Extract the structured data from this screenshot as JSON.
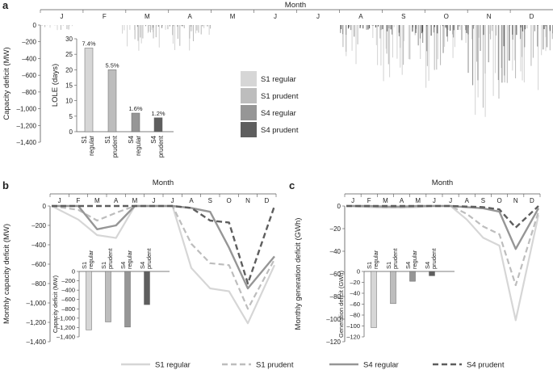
{
  "panels": {
    "a": "a",
    "b": "b",
    "c": "c"
  },
  "months": [
    "J",
    "F",
    "M",
    "A",
    "M",
    "J",
    "J",
    "A",
    "S",
    "O",
    "N",
    "D"
  ],
  "month_axis_label": "Month",
  "colors": {
    "s1_regular": "#d6d6d6",
    "s1_prudent": "#bdbdbd",
    "s4_regular": "#969696",
    "s4_prudent": "#5e5e5e",
    "axis": "#555555"
  },
  "series_names": [
    "S1 regular",
    "S1 prudent",
    "S4 regular",
    "S4 prudent"
  ],
  "chart_data": [
    {
      "id": "a",
      "type": "bar",
      "title": "",
      "xlabel": "Month",
      "ylabel": "Capacity deficit (MW)",
      "ylim": [
        -1400,
        0
      ],
      "yticks": [
        0,
        -200,
        -400,
        -600,
        -800,
        -1000,
        -1200,
        -1400
      ],
      "ytick_labels": [
        "0",
        "–200",
        "–400",
        "–600",
        "–800",
        "–1,000",
        "–1,200",
        "–1,400"
      ],
      "description_series": [
        {
          "name": "S1 regular",
          "monthly_max_deficit_mw": [
            -100,
            -180,
            -320,
            -380,
            0,
            0,
            0,
            -550,
            -700,
            -850,
            -1150,
            -800
          ]
        },
        {
          "name": "S1 prudent",
          "monthly_max_deficit_mw": [
            -60,
            -120,
            -220,
            -260,
            0,
            0,
            0,
            -400,
            -550,
            -700,
            -1050,
            -650
          ]
        },
        {
          "name": "S4 regular",
          "monthly_max_deficit_mw": [
            0,
            0,
            -40,
            -20,
            0,
            0,
            0,
            -150,
            -250,
            -350,
            -850,
            -300
          ]
        },
        {
          "name": "S4 prudent",
          "monthly_max_deficit_mw": [
            0,
            0,
            0,
            0,
            0,
            0,
            0,
            -60,
            -100,
            -150,
            -600,
            -120
          ]
        }
      ],
      "legend": [
        "S1 regular",
        "S1 prudent",
        "S4 regular",
        "S4 prudent"
      ],
      "legend_position": "center-left"
    },
    {
      "id": "a-inset",
      "type": "bar",
      "ylabel": "LOLE (days)",
      "ylim": [
        0,
        30
      ],
      "yticks": [
        0,
        5,
        10,
        15,
        20,
        25,
        30
      ],
      "categories": [
        "S1 regular",
        "S1 prudent",
        "S4 regular",
        "S4 prudent"
      ],
      "category_labels": [
        [
          "S1",
          "regular"
        ],
        [
          "S1",
          "prudent"
        ],
        [
          "S4",
          "regular"
        ],
        [
          "S4",
          "prudent"
        ]
      ],
      "values": [
        27,
        20,
        6,
        4.5
      ],
      "data_labels": [
        "7.4%",
        "5.5%",
        "1.6%",
        "1.2%"
      ]
    },
    {
      "id": "b",
      "type": "line",
      "xlabel": "Month",
      "ylabel": "Monthly capacity deficit (MW)",
      "ylim": [
        -1400,
        0
      ],
      "yticks": [
        0,
        -200,
        -400,
        -600,
        -800,
        -1000,
        -1200,
        -1400
      ],
      "ytick_labels": [
        "0",
        "–200",
        "–400",
        "–600",
        "–800",
        "–1,000",
        "–1,200",
        "–1,400"
      ],
      "x": [
        "J",
        "F",
        "M",
        "A",
        "M",
        "J",
        "J",
        "A",
        "S",
        "O",
        "N",
        "D"
      ],
      "series": [
        {
          "name": "S1 regular",
          "values": [
            0,
            -140,
            -300,
            -330,
            0,
            0,
            0,
            -640,
            -850,
            -880,
            -1210,
            -610
          ]
        },
        {
          "name": "S1 prudent",
          "values": [
            0,
            -40,
            -150,
            -70,
            0,
            0,
            0,
            -390,
            -590,
            -610,
            -1060,
            -550
          ]
        },
        {
          "name": "S4 regular",
          "values": [
            0,
            0,
            -240,
            -200,
            0,
            0,
            0,
            -20,
            -60,
            -430,
            -850,
            -520
          ]
        },
        {
          "name": "S4 prudent",
          "values": [
            0,
            0,
            0,
            0,
            0,
            0,
            0,
            -20,
            -150,
            -170,
            -800,
            0
          ]
        }
      ]
    },
    {
      "id": "b-inset",
      "type": "bar",
      "ylabel": "Capacity deficit (MW)",
      "ylim": [
        -1400,
        0
      ],
      "yticks": [
        0,
        -200,
        -400,
        -600,
        -800,
        -1000,
        -1200,
        -1400
      ],
      "ytick_labels": [
        "0",
        "–200",
        "–400",
        "–600",
        "–800",
        "–1,000",
        "–1,200",
        "–1,400"
      ],
      "categories": [
        "S1 regular",
        "S1 prudent",
        "S4 regular",
        "S4 prudent"
      ],
      "category_labels": [
        [
          "S1",
          "regular"
        ],
        [
          "S1",
          "prudent"
        ],
        [
          "S4",
          "regular"
        ],
        [
          "S4",
          "prudent"
        ]
      ],
      "values": [
        -1250,
        -1080,
        -1190,
        -710
      ]
    },
    {
      "id": "c",
      "type": "line",
      "xlabel": "Month",
      "ylabel": "Monthly generation deficit (GWh)",
      "ylim": [
        -120,
        0
      ],
      "yticks": [
        0,
        -20,
        -40,
        -60,
        -80,
        -100,
        -120
      ],
      "ytick_labels": [
        "0",
        "–20",
        "–40",
        "–60",
        "–80",
        "–100",
        "–120"
      ],
      "x": [
        "J",
        "F",
        "M",
        "A",
        "M",
        "J",
        "J",
        "A",
        "S",
        "O",
        "N",
        "D"
      ],
      "series": [
        {
          "name": "S1 regular",
          "values": [
            0,
            -1,
            -1.5,
            -1.5,
            -1,
            0,
            0,
            -12,
            -28,
            -35,
            -101,
            -8
          ]
        },
        {
          "name": "S1 prudent",
          "values": [
            0,
            -0.5,
            -1,
            -1,
            -0.5,
            0,
            0,
            -7,
            -18,
            -25,
            -70,
            -5
          ]
        },
        {
          "name": "S4 regular",
          "values": [
            0,
            0,
            -0.5,
            -0.5,
            0,
            0,
            0,
            -1,
            -2,
            -5,
            -38,
            -2
          ]
        },
        {
          "name": "S4 prudent",
          "values": [
            0,
            0,
            0,
            0,
            0,
            0,
            0,
            -0.5,
            -1,
            -3,
            -19,
            0
          ]
        }
      ]
    },
    {
      "id": "c-inset",
      "type": "bar",
      "ylabel": "Generation deficit (GWh)",
      "ylim": [
        -120,
        0
      ],
      "yticks": [
        0,
        -20,
        -40,
        -60,
        -80,
        -100,
        -120
      ],
      "ytick_labels": [
        "0",
        "–20",
        "–40",
        "–60",
        "–80",
        "–100",
        "–120"
      ],
      "categories": [
        "S1 regular",
        "S1 prudent",
        "S4 regular",
        "S4 prudent"
      ],
      "category_labels": [
        [
          "S1",
          "regular"
        ],
        [
          "S1",
          "prudent"
        ],
        [
          "S4",
          "regular"
        ],
        [
          "S4",
          "prudent"
        ]
      ],
      "values": [
        -103,
        -59,
        -18,
        -8
      ]
    }
  ],
  "bottom_legend": [
    "S1 regular",
    "S1 prudent",
    "S4 regular",
    "S4 prudent"
  ]
}
